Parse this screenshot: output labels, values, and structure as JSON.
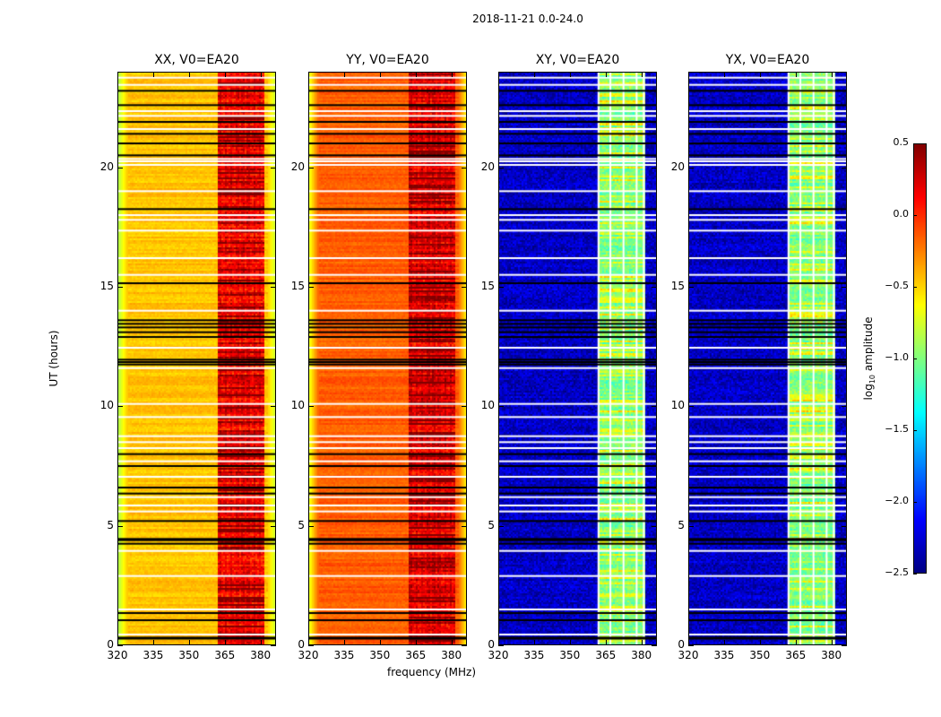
{
  "chart_data": {
    "type": "heatmap",
    "title": "2018-11-21 0.0-24.0",
    "xlabel": "frequency (MHz)",
    "ylabel": "UT (hours)",
    "xlim": [
      320,
      386.5
    ],
    "ylim": [
      0,
      24
    ],
    "xticks": [
      "320",
      "335",
      "350",
      "365",
      "380"
    ],
    "xtick_values": [
      320,
      335,
      350,
      365,
      380
    ],
    "yticks": [
      "0",
      "5",
      "10",
      "15",
      "20"
    ],
    "ytick_values": [
      0,
      5,
      10,
      15,
      20
    ],
    "colorbar": {
      "label_main": "log",
      "label_sub": "10",
      "label_tail": " amplitude",
      "range": [
        -2.5,
        0.5
      ],
      "ticks": [
        "0.5",
        "0.0",
        "−0.5",
        "−1.0",
        "−1.5",
        "−2.0",
        "−2.5"
      ],
      "tick_values": [
        0.5,
        0.0,
        -0.5,
        -1.0,
        -1.5,
        -2.0,
        -2.5
      ],
      "colormap": "jet"
    },
    "band_MHz": [
      362,
      381
    ],
    "band_channel_gaps_MHz": [
      367,
      372.5,
      378
    ],
    "panels": [
      {
        "title": "XX, V0=EA20",
        "base_level": -0.45,
        "band_level": 0.1,
        "edge_level": -0.85,
        "flag_color": "#000000"
      },
      {
        "title": "YY, V0=EA20",
        "base_level": -0.15,
        "band_level": 0.15,
        "edge_level": -0.7,
        "flag_color": "#000000"
      },
      {
        "title": "XY, V0=EA20",
        "base_level": -2.3,
        "band_level": -1.0,
        "edge_level": -2.3,
        "flag_color": "#ffffff"
      },
      {
        "title": "YX, V0=EA20",
        "base_level": -2.3,
        "band_level": -1.0,
        "edge_level": -2.3,
        "flag_color": "#ffffff"
      }
    ],
    "flagged_black_UT": [
      0.28,
      0.32,
      1.05,
      1.35,
      4.25,
      4.4,
      4.45,
      5.2,
      6.35,
      6.6,
      7.5,
      8.0,
      11.75,
      11.85,
      11.95,
      12.9,
      13.1,
      13.3,
      13.45,
      13.6,
      15.15,
      18.25,
      20.5,
      21.0,
      21.4,
      21.9,
      22.6,
      23.2
    ],
    "flagged_white_UT": [
      0.45,
      1.5,
      2.9,
      3.95,
      5.6,
      5.85,
      6.2,
      7.05,
      7.7,
      8.25,
      8.5,
      8.75,
      9.55,
      10.1,
      11.6,
      12.45,
      14.0,
      15.5,
      16.2,
      17.35,
      17.8,
      18.0,
      19.0,
      20.1,
      20.25,
      20.35,
      21.6,
      22.15,
      22.35,
      23.45,
      23.75
    ]
  }
}
